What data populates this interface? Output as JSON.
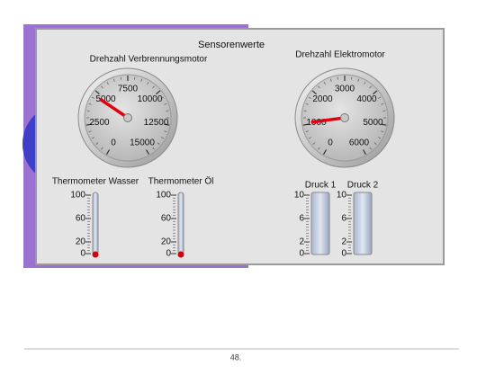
{
  "panel": {
    "title": "Sensorenwerte"
  },
  "gauges": [
    {
      "label": "Drehzahl Verbrennungsmotor",
      "ticks": [
        0,
        2500,
        5000,
        7500,
        10000,
        12500,
        15000
      ],
      "value": 4700
    },
    {
      "label": "Drehzahl Elektromotor",
      "ticks": [
        0,
        1000,
        2000,
        3000,
        4000,
        5000,
        6000
      ],
      "value": 1050
    }
  ],
  "thermometers": [
    {
      "label": "Thermometer Wasser",
      "ticks": [
        0,
        20,
        60,
        100
      ],
      "value": 0
    },
    {
      "label": "Thermometer Öl",
      "ticks": [
        0,
        20,
        60,
        100
      ],
      "value": 0
    }
  ],
  "tanks": [
    {
      "label": "Druck 1",
      "ticks": [
        0,
        2,
        6,
        10
      ],
      "value": 0
    },
    {
      "label": "Druck 2",
      "ticks": [
        0,
        2,
        6,
        10
      ],
      "value": 0
    }
  ],
  "footer": {
    "page": "48."
  }
}
